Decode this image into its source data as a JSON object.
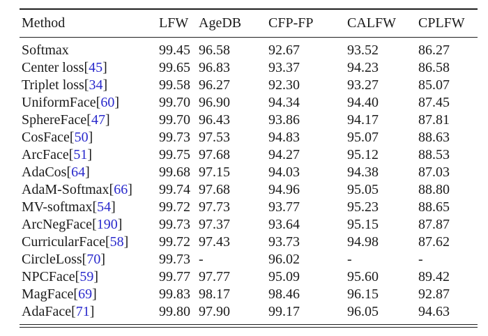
{
  "colors": {
    "text": "#1b1b1b",
    "rule": "#1e1e1e",
    "citation_blue": "#2929cc",
    "background": "#ffffff"
  },
  "table": {
    "columns": [
      {
        "label": "Method"
      },
      {
        "label": "LFW"
      },
      {
        "label": "AgeDB"
      },
      {
        "label": "CFP-FP"
      },
      {
        "label": "CALFW"
      },
      {
        "label": "CPLFW"
      }
    ],
    "rows": [
      {
        "method": "Softmax",
        "ref": "",
        "values": [
          "99.45",
          "96.58",
          "92.67",
          "93.52",
          "86.27"
        ]
      },
      {
        "method": "Center loss",
        "ref": "45",
        "values": [
          "99.65",
          "96.83",
          "93.37",
          "94.23",
          "86.58"
        ]
      },
      {
        "method": "Triplet loss",
        "ref": "34",
        "values": [
          "99.58",
          "96.27",
          "92.30",
          "93.27",
          "85.07"
        ]
      },
      {
        "method": "UniformFace",
        "ref": "60",
        "values": [
          "99.70",
          "96.90",
          "94.34",
          "94.40",
          "87.45"
        ]
      },
      {
        "method": "SphereFace",
        "ref": "47",
        "values": [
          "99.70",
          "96.43",
          "93.86",
          "94.17",
          "87.81"
        ]
      },
      {
        "method": "CosFace",
        "ref": "50",
        "values": [
          "99.73",
          "97.53",
          "94.83",
          "95.07",
          "88.63"
        ]
      },
      {
        "method": "ArcFace",
        "ref": "51",
        "values": [
          "99.75",
          "97.68",
          "94.27",
          "95.12",
          "88.53"
        ]
      },
      {
        "method": "AdaCos",
        "ref": "64",
        "values": [
          "99.68",
          "97.15",
          "94.03",
          "94.38",
          "87.03"
        ]
      },
      {
        "method": "AdaM-Softmax",
        "ref": "66",
        "values": [
          "99.74",
          "97.68",
          "94.96",
          "95.05",
          "88.80"
        ]
      },
      {
        "method": "MV-softmax",
        "ref": "54",
        "values": [
          "99.72",
          "97.73",
          "93.77",
          "95.23",
          "88.65"
        ]
      },
      {
        "method": "ArcNegFace",
        "ref": "190",
        "values": [
          "99.73",
          "97.37",
          "93.64",
          "95.15",
          "87.87"
        ]
      },
      {
        "method": "CurricularFace",
        "ref": "58",
        "values": [
          "99.72",
          "97.43",
          "93.73",
          "94.98",
          "87.62"
        ]
      },
      {
        "method": "CircleLoss",
        "ref": "70",
        "values": [
          "99.73",
          "-",
          "96.02",
          "-",
          "-"
        ]
      },
      {
        "method": "NPCFace",
        "ref": "59",
        "values": [
          "99.77",
          "97.77",
          "95.09",
          "95.60",
          "89.42"
        ]
      },
      {
        "method": "MagFace",
        "ref": "69",
        "values": [
          "99.83",
          "98.17",
          "98.46",
          "96.15",
          "92.87"
        ]
      },
      {
        "method": "AdaFace",
        "ref": "71",
        "values": [
          "99.80",
          "97.90",
          "99.17",
          "96.05",
          "94.63"
        ]
      }
    ]
  }
}
